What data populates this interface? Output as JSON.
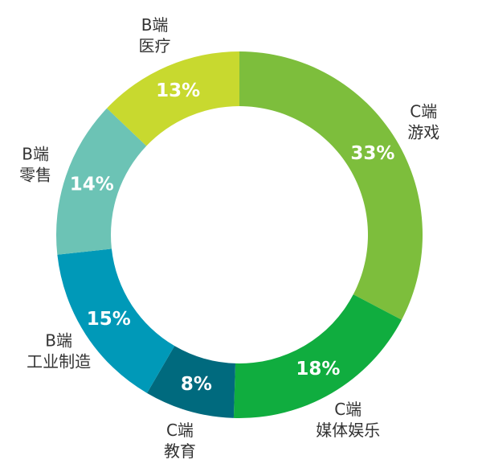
{
  "chart_data": {
    "type": "donut",
    "categories": [
      [
        "C端",
        "游戏"
      ],
      [
        "C端",
        "媒体娱乐"
      ],
      [
        "C端",
        "教育"
      ],
      [
        "B端",
        "工业制造"
      ],
      [
        "B端",
        "零售"
      ],
      [
        "B端",
        "医疗"
      ]
    ],
    "values": [
      33,
      18,
      8,
      15,
      14,
      13
    ],
    "value_labels": [
      "33%",
      "18%",
      "8%",
      "15%",
      "14%",
      "13%"
    ],
    "colors": [
      "#7dbe3c",
      "#10ad3f",
      "#006a7e",
      "#0099b8",
      "#6cc3b5",
      "#c8d92f"
    ]
  }
}
